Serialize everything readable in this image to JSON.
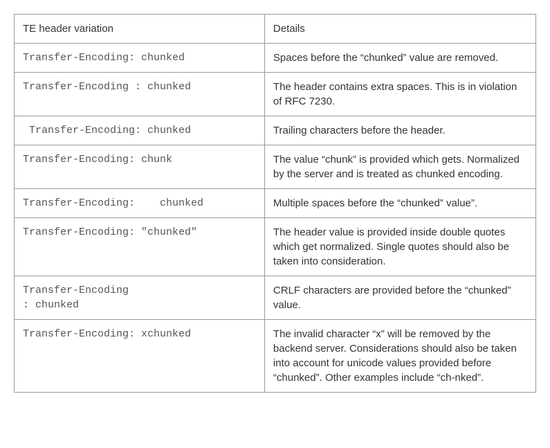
{
  "table": {
    "headers": {
      "variation": "TE header variation",
      "details": "Details"
    },
    "rows": [
      {
        "variation": "Transfer-Encoding: chunked",
        "details": "Spaces before the “chunked” value are removed."
      },
      {
        "variation": "Transfer-Encoding : chunked",
        "details": "The header contains extra spaces.  This is in violation of RFC 7230."
      },
      {
        "variation": " Transfer-Encoding: chunked",
        "details": "Trailing characters before the header."
      },
      {
        "variation": "Transfer-Encoding: chunk",
        "details": "The value “chunk” is provided which gets. Normalized by the server and is treated as chunked encoding."
      },
      {
        "variation": "Transfer-Encoding:    chunked",
        "details": "Multiple spaces before the “chunked” value”."
      },
      {
        "variation": "Transfer-Encoding: \"chunked\"",
        "details": "The header value is provided inside double quotes which get normalized. Single quotes should also be taken into consideration."
      },
      {
        "variation": "Transfer-Encoding\n: chunked",
        "details": "CRLF characters are provided before the “chunked” value."
      },
      {
        "variation": "Transfer-Encoding: xchunked",
        "details": "The invalid character “x” will be removed by the backend server. Considerations should also be taken into account for unicode values provided before “chunked”. Other examples include “ch-nked”."
      }
    ]
  }
}
